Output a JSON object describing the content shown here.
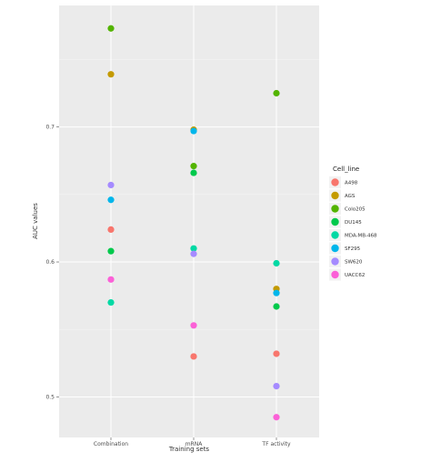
{
  "chart_data": {
    "type": "scatter",
    "title": "",
    "xlabel": "Training sets",
    "ylabel": "AUC values",
    "categories": [
      "Combination",
      "mRNA",
      "TF activity"
    ],
    "ylim": [
      0.47,
      0.79
    ],
    "yticks": [
      "0.5",
      "0.6",
      "0.7"
    ],
    "grid": true,
    "legend": {
      "title": "Cell_line",
      "placement": "right"
    },
    "series": [
      {
        "name": "A498",
        "color": "#F8766D",
        "values": [
          0.624,
          0.53,
          0.532
        ]
      },
      {
        "name": "AGS",
        "color": "#C49A00",
        "values": [
          0.739,
          0.698,
          0.58
        ]
      },
      {
        "name": "Colo205",
        "color": "#53B400",
        "values": [
          0.773,
          0.671,
          0.725
        ]
      },
      {
        "name": "DU145",
        "color": "#00C94C",
        "values": [
          0.608,
          0.666,
          0.567
        ]
      },
      {
        "name": "MDA-MB-468",
        "color": "#00D9A4",
        "values": [
          0.57,
          0.61,
          0.599
        ]
      },
      {
        "name": "SF295",
        "color": "#00B6EB",
        "values": [
          0.646,
          0.697,
          0.577
        ]
      },
      {
        "name": "SW620",
        "color": "#A58AFF",
        "values": [
          0.657,
          0.606,
          0.508
        ]
      },
      {
        "name": "UACC62",
        "color": "#FB61D7",
        "values": [
          0.587,
          0.553,
          0.485
        ]
      }
    ]
  }
}
